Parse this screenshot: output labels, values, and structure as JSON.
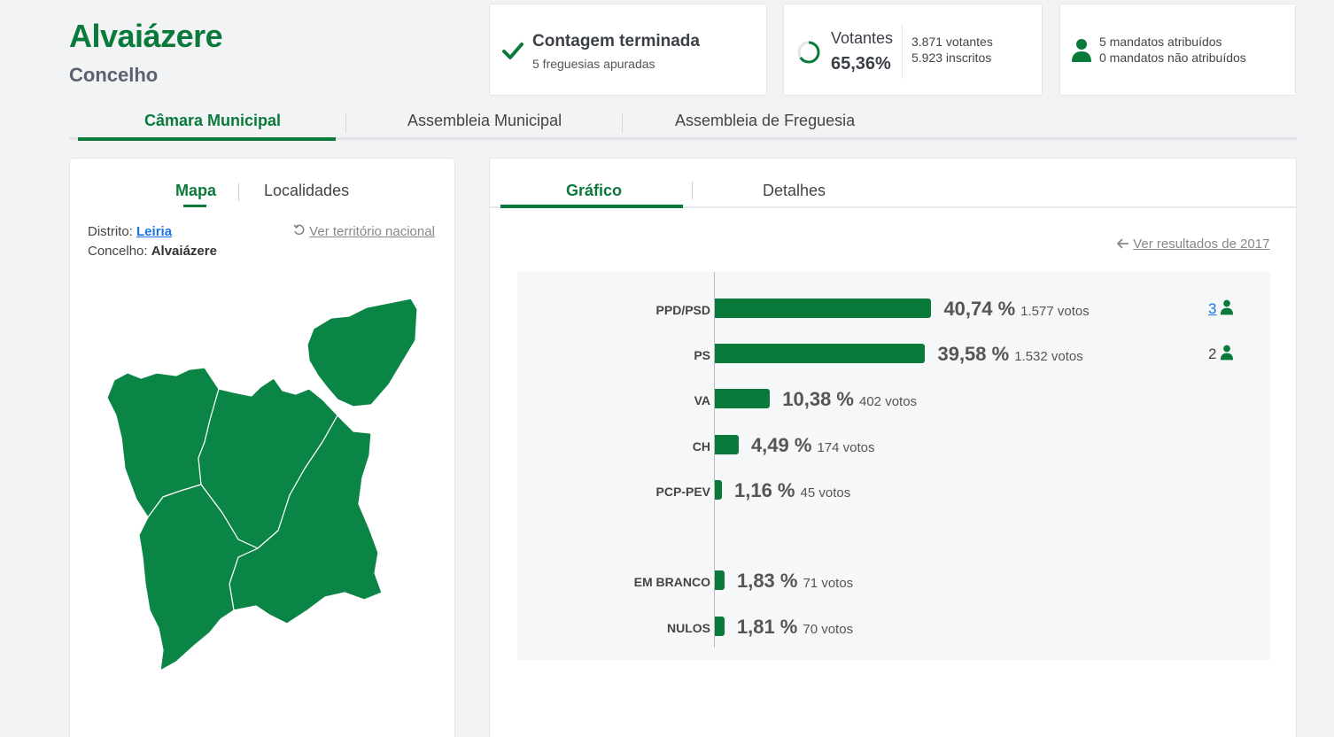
{
  "header": {
    "title": "Alvaiázere",
    "subtitle": "Concelho"
  },
  "stats": {
    "count": {
      "title": "Contagem terminada",
      "sub": "5 freguesias apuradas",
      "icon": "check-icon"
    },
    "voters": {
      "label": "Votantes",
      "percent": "65,36%",
      "percent_value": 65.36,
      "votes": "3.871 votantes",
      "registered": "5.923 inscritos",
      "icon": "progress-ring-icon"
    },
    "seats": {
      "assigned": "5 mandatos atribuídos",
      "unassigned": "0 mandatos não atribuídos",
      "icon": "person-icon"
    }
  },
  "main_tabs": [
    "Câmara Municipal",
    "Assembleia Municipal",
    "Assembleia de Freguesia"
  ],
  "left_panel": {
    "tabs": [
      "Mapa",
      "Localidades"
    ],
    "district_label": "Distrito:",
    "district": "Leiria",
    "county_label": "Concelho:",
    "county": "Alvaiázere",
    "national_link": "Ver território nacional"
  },
  "right_panel": {
    "tabs": [
      "Gráfico",
      "Detalhes"
    ],
    "prev_link": "Ver resultados de 2017"
  },
  "chart_data": {
    "type": "bar",
    "orientation": "horizontal",
    "xlim": [
      0,
      100
    ],
    "color": "#0a7a3b",
    "parties": [
      {
        "name": "PPD/PSD",
        "percent_label": "40,74 %",
        "votes_label": "1.577 votos",
        "value": 40.74,
        "seats": "3",
        "seats_link": true
      },
      {
        "name": "PS",
        "percent_label": "39,58 %",
        "votes_label": "1.532 votos",
        "value": 39.58,
        "seats": "2",
        "seats_link": false
      },
      {
        "name": "VA",
        "percent_label": "10,38 %",
        "votes_label": "402 votos",
        "value": 10.38
      },
      {
        "name": "CH",
        "percent_label": "4,49 %",
        "votes_label": "174 votos",
        "value": 4.49
      },
      {
        "name": "PCP-PEV",
        "percent_label": "1,16 %",
        "votes_label": "45 votos",
        "value": 1.16
      }
    ],
    "others": [
      {
        "name": "EM BRANCO",
        "percent_label": "1,83 %",
        "votes_label": "71 votos",
        "value": 1.83
      },
      {
        "name": "NULOS",
        "percent_label": "1,81 %",
        "votes_label": "70 votos",
        "value": 1.81
      }
    ]
  },
  "colors": {
    "accent": "#0a7a3b",
    "link": "#1a73e8"
  }
}
